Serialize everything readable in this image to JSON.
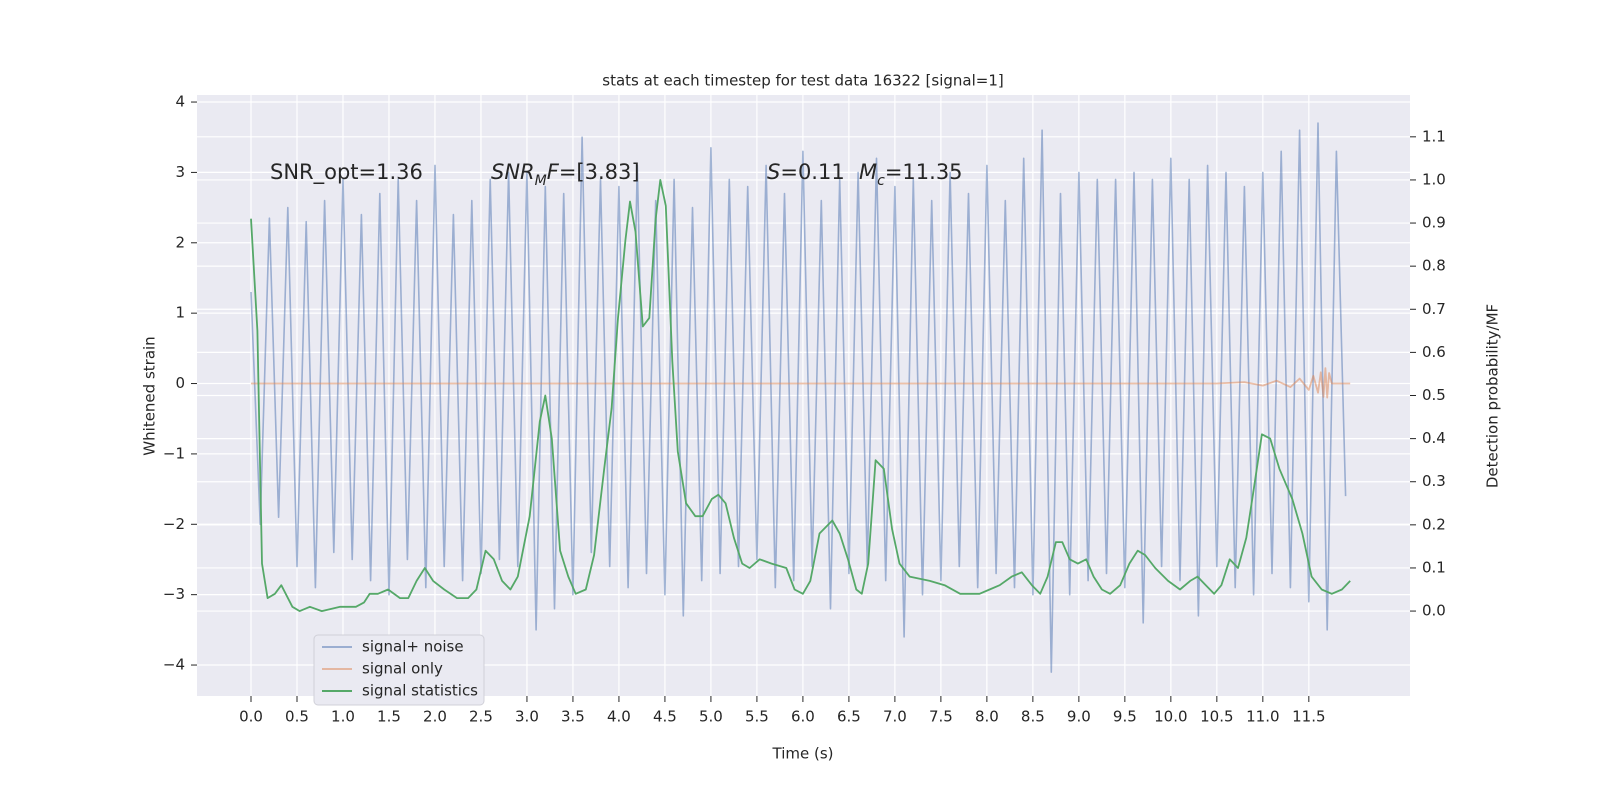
{
  "chart_data": {
    "type": "line",
    "title": "stats at each timestep for test data 16322 [signal=1]",
    "xlabel": "Time (s)",
    "ylabel": "Whitened strain",
    "y2label": "Detection probability/MF",
    "xlim": [
      -0.587,
      12.6
    ],
    "ylim": [
      -4.44,
      4.1
    ],
    "y2lim": [
      -0.197,
      1.197
    ],
    "xticks": [
      {
        "value": 0,
        "label": "0.0"
      },
      0.5,
      {
        "value": 1,
        "label": "1.0"
      },
      1.5,
      {
        "value": 2,
        "label": "2.0"
      },
      2.5,
      {
        "value": 3,
        "label": "3.0"
      },
      3.5,
      {
        "value": 4,
        "label": "4.0"
      },
      4.5,
      {
        "value": 5,
        "label": "5.0"
      },
      5.5,
      {
        "value": 6,
        "label": "6.0"
      },
      6.5,
      {
        "value": 7,
        "label": "7.0"
      },
      7.5,
      {
        "value": 8,
        "label": "8.0"
      },
      8.5,
      {
        "value": 9,
        "label": "9.0"
      },
      9.5,
      {
        "value": 10,
        "label": "10.0"
      },
      10.5,
      {
        "value": 11,
        "label": "11.0"
      },
      11.5
    ],
    "yticks": [
      {
        "value": -4,
        "label": "−4"
      },
      {
        "value": -3,
        "label": "−3"
      },
      {
        "value": -2,
        "label": "−2"
      },
      {
        "value": -1,
        "label": "−1"
      },
      0,
      1,
      2,
      3,
      4
    ],
    "y2ticks": [
      {
        "value": 0,
        "label": "0.0"
      },
      0.1,
      0.2,
      0.3,
      0.4,
      0.5,
      0.6,
      0.7,
      0.8,
      0.9,
      {
        "value": 1,
        "label": "1.0"
      },
      1.1
    ],
    "grid": true,
    "legend": "lower left",
    "annotations": [
      [
        {
          "text": "SNR_opt=1.36"
        }
      ],
      [
        {
          "text": "SNR",
          "italic": true
        },
        {
          "text": "M",
          "italic": true,
          "sub": true
        },
        {
          "text": "F",
          "italic": true
        },
        {
          "text": "=[3.83]"
        }
      ],
      [
        {
          "text": "S",
          "italic": true
        },
        {
          "text": "=0.11"
        }
      ],
      [
        {
          "text": "M",
          "italic": true
        },
        {
          "text": "c",
          "italic": true,
          "sub": true
        },
        {
          "text": "=11.35"
        }
      ]
    ],
    "series": [
      {
        "name": "signal+ noise",
        "color": "#4c72b0",
        "opacity": 0.5,
        "x": [
          0.0,
          0.1,
          0.2,
          0.3,
          0.4,
          0.5,
          0.6,
          0.7,
          0.8,
          0.9,
          1.0,
          1.1,
          1.2,
          1.3,
          1.4,
          1.5,
          1.6,
          1.7,
          1.8,
          1.9,
          2.0,
          2.1,
          2.2,
          2.3,
          2.4,
          2.5,
          2.6,
          2.7,
          2.8,
          2.9,
          3.0,
          3.1,
          3.2,
          3.3,
          3.4,
          3.5,
          3.6,
          3.7,
          3.8,
          3.9,
          4.0,
          4.1,
          4.2,
          4.3,
          4.4,
          4.5,
          4.6,
          4.7,
          4.8,
          4.9,
          5.0,
          5.1,
          5.2,
          5.3,
          5.4,
          5.5,
          5.6,
          5.7,
          5.8,
          5.9,
          6.0,
          6.1,
          6.2,
          6.3,
          6.4,
          6.5,
          6.6,
          6.7,
          6.8,
          6.9,
          7.0,
          7.1,
          7.2,
          7.3,
          7.4,
          7.5,
          7.6,
          7.7,
          7.8,
          7.9,
          8.0,
          8.1,
          8.2,
          8.3,
          8.4,
          8.5,
          8.6,
          8.7,
          8.8,
          8.9,
          9.0,
          9.1,
          9.2,
          9.3,
          9.4,
          9.5,
          9.6,
          9.7,
          9.8,
          9.9,
          10.0,
          10.1,
          10.2,
          10.3,
          10.4,
          10.5,
          10.6,
          10.7,
          10.8,
          10.9,
          11.0,
          11.1,
          11.2,
          11.3,
          11.4,
          11.5,
          11.6,
          11.7,
          11.8,
          11.9
        ],
        "values": [
          1.3,
          -2.0,
          2.35,
          -1.9,
          2.5,
          -2.6,
          2.3,
          -2.9,
          2.6,
          -2.4,
          2.9,
          -2.5,
          2.4,
          -2.8,
          2.7,
          -3.0,
          2.9,
          -2.5,
          2.6,
          -2.9,
          3.1,
          -2.6,
          2.4,
          -2.8,
          2.6,
          -2.7,
          2.9,
          -2.5,
          3.0,
          -2.6,
          3.0,
          -3.5,
          2.8,
          -3.2,
          2.7,
          -3.0,
          3.5,
          -2.4,
          2.9,
          -2.6,
          2.8,
          -2.9,
          3.1,
          -2.7,
          2.6,
          -3.0,
          2.9,
          -3.3,
          2.5,
          -2.8,
          3.35,
          -2.7,
          2.9,
          -2.6,
          2.8,
          -2.5,
          3.1,
          -2.9,
          2.7,
          -2.8,
          3.3,
          -2.6,
          2.6,
          -3.2,
          2.9,
          -2.7,
          3.0,
          -2.6,
          3.2,
          -2.8,
          2.8,
          -3.6,
          2.9,
          -3.0,
          2.6,
          -2.8,
          3.0,
          -2.6,
          2.7,
          -2.9,
          3.1,
          -2.7,
          2.6,
          -2.9,
          3.2,
          -3.0,
          3.6,
          -4.1,
          2.7,
          -3.0,
          3.0,
          -2.8,
          2.9,
          -2.7,
          2.9,
          -2.9,
          3.0,
          -3.4,
          2.9,
          -2.6,
          3.2,
          -2.8,
          2.9,
          -3.3,
          3.1,
          -2.6,
          3.0,
          -2.9,
          2.8,
          -3.0,
          3.0,
          -2.7,
          3.3,
          -2.9,
          3.6,
          -3.1,
          3.7,
          -3.5,
          3.3,
          -1.6
        ]
      },
      {
        "name": "signal only",
        "color": "#dd8452",
        "opacity": 0.5,
        "x": [
          0.0,
          10.5,
          10.8,
          11.0,
          11.15,
          11.3,
          11.4,
          11.5,
          11.55,
          11.6,
          11.63,
          11.66,
          11.68,
          11.7,
          11.72,
          11.75,
          11.95
        ],
        "values": [
          0,
          0,
          0.02,
          -0.03,
          0.04,
          -0.05,
          0.07,
          -0.09,
          0.11,
          -0.13,
          0.16,
          -0.19,
          0.22,
          -0.2,
          0.15,
          0,
          0
        ]
      },
      {
        "name": "signal statistics",
        "color": "#55a868",
        "opacity": 1,
        "axis": "y2",
        "x": [
          0.0,
          0.07,
          0.12,
          0.18,
          0.26,
          0.33,
          0.45,
          0.53,
          0.64,
          0.77,
          0.97,
          1.14,
          1.23,
          1.29,
          1.38,
          1.49,
          1.62,
          1.71,
          1.8,
          1.89,
          1.98,
          2.1,
          2.24,
          2.36,
          2.45,
          2.55,
          2.64,
          2.73,
          2.82,
          2.9,
          3.03,
          3.14,
          3.2,
          3.27,
          3.36,
          3.45,
          3.53,
          3.64,
          3.73,
          3.84,
          3.92,
          3.99,
          4.07,
          4.12,
          4.18,
          4.26,
          4.33,
          4.4,
          4.45,
          4.51,
          4.58,
          4.64,
          4.73,
          4.83,
          4.91,
          5.01,
          5.08,
          5.16,
          5.25,
          5.34,
          5.42,
          5.53,
          5.66,
          5.82,
          5.91,
          6.0,
          6.08,
          6.18,
          6.32,
          6.4,
          6.49,
          6.58,
          6.64,
          6.71,
          6.79,
          6.88,
          6.97,
          7.05,
          7.16,
          7.38,
          7.54,
          7.71,
          7.92,
          8.03,
          8.14,
          8.27,
          8.38,
          8.49,
          8.58,
          8.66,
          8.75,
          8.82,
          8.9,
          8.99,
          9.08,
          9.16,
          9.25,
          9.34,
          9.45,
          9.55,
          9.64,
          9.72,
          9.83,
          9.97,
          10.1,
          10.21,
          10.29,
          10.38,
          10.47,
          10.55,
          10.64,
          10.73,
          10.82,
          10.9,
          10.99,
          11.08,
          11.18,
          11.32,
          11.43,
          11.53,
          11.64,
          11.75,
          11.86,
          11.95
        ],
        "values": [
          0.91,
          0.65,
          0.11,
          0.03,
          0.04,
          0.06,
          0.01,
          0.0,
          0.01,
          0.0,
          0.01,
          0.01,
          0.02,
          0.04,
          0.04,
          0.05,
          0.03,
          0.03,
          0.07,
          0.1,
          0.07,
          0.05,
          0.03,
          0.03,
          0.05,
          0.14,
          0.12,
          0.07,
          0.05,
          0.08,
          0.22,
          0.44,
          0.5,
          0.4,
          0.14,
          0.08,
          0.04,
          0.05,
          0.13,
          0.33,
          0.47,
          0.68,
          0.86,
          0.95,
          0.88,
          0.66,
          0.68,
          0.91,
          1.0,
          0.94,
          0.58,
          0.37,
          0.25,
          0.22,
          0.22,
          0.26,
          0.27,
          0.25,
          0.17,
          0.11,
          0.1,
          0.12,
          0.11,
          0.1,
          0.05,
          0.04,
          0.07,
          0.18,
          0.21,
          0.18,
          0.12,
          0.05,
          0.04,
          0.11,
          0.35,
          0.33,
          0.19,
          0.11,
          0.08,
          0.07,
          0.06,
          0.04,
          0.04,
          0.05,
          0.06,
          0.08,
          0.09,
          0.06,
          0.04,
          0.08,
          0.16,
          0.16,
          0.12,
          0.11,
          0.12,
          0.08,
          0.05,
          0.04,
          0.06,
          0.11,
          0.14,
          0.13,
          0.1,
          0.07,
          0.05,
          0.07,
          0.08,
          0.06,
          0.04,
          0.06,
          0.12,
          0.1,
          0.17,
          0.28,
          0.41,
          0.4,
          0.33,
          0.26,
          0.18,
          0.08,
          0.05,
          0.04,
          0.05,
          0.07
        ]
      }
    ]
  }
}
